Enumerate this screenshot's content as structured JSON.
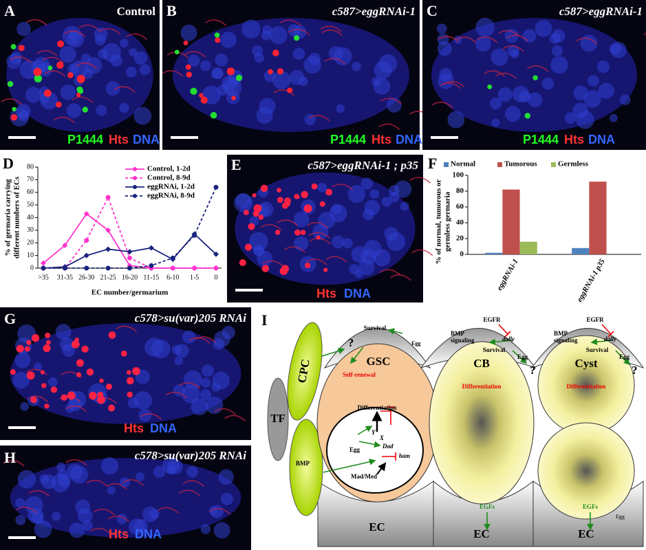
{
  "panels": {
    "A": {
      "letter": "A",
      "genotype": "Control",
      "stains": [
        "P1444",
        "Hts",
        "DNA"
      ]
    },
    "B": {
      "letter": "B",
      "genotype": "c587>eggRNAi-1",
      "stains": [
        "P1444",
        "Hts",
        "DNA"
      ]
    },
    "C": {
      "letter": "C",
      "genotype": "c587>eggRNAi-1",
      "stains": [
        "P1444",
        "Hts",
        "DNA"
      ]
    },
    "D": {
      "letter": "D"
    },
    "E": {
      "letter": "E",
      "genotype": "c587>eggRNAi-1 ; p35",
      "stains": [
        "Hts",
        "DNA"
      ]
    },
    "F": {
      "letter": "F"
    },
    "G": {
      "letter": "G",
      "genotype": "c578>su(var)205 RNAi",
      "stains": [
        "Hts",
        "DNA"
      ]
    },
    "H": {
      "letter": "H",
      "genotype": "c578>su(var)205 RNAi",
      "stains": [
        "Hts",
        "DNA"
      ]
    }
  },
  "chart_data": [
    {
      "type": "line",
      "ylabel": [
        "% of germaria carrying",
        "different numbers of ECs"
      ],
      "xlabel": "EC number/germarium",
      "categories": [
        ">35",
        "31-35",
        "26-30",
        "21-25",
        "16-20",
        "11-15",
        "6-10",
        "1-5",
        "0"
      ],
      "ylim": [
        0,
        80
      ],
      "yticks": [
        0,
        10,
        20,
        30,
        40,
        50,
        60,
        70,
        80
      ],
      "legend": "upper right",
      "series": [
        {
          "name": "Control, 1-2d",
          "color": "#ff33cc",
          "dash": false,
          "marker": "diamond",
          "values": [
            4,
            18,
            43,
            30,
            2,
            0,
            0,
            0,
            0
          ]
        },
        {
          "name": "Control, 8-9d",
          "color": "#ff33cc",
          "dash": true,
          "marker": "circle",
          "values": [
            0,
            0,
            22,
            56,
            8,
            0,
            0,
            0,
            0
          ]
        },
        {
          "name": "eggRNAi, 1-2d",
          "color": "#1a237e",
          "dash": false,
          "marker": "diamond",
          "values": [
            0,
            1,
            10,
            15,
            13,
            16,
            7,
            27,
            11
          ]
        },
        {
          "name": "eggRNAi, 8-9d",
          "color": "#1a237e",
          "dash": true,
          "marker": "circle",
          "values": [
            0,
            0,
            0,
            0,
            0,
            2,
            8,
            26,
            64
          ]
        }
      ]
    },
    {
      "type": "bar",
      "ylabel": [
        "% of normal, tumorous or",
        "germless germaria"
      ],
      "categories": [
        "eggRNAi-1",
        "eggRNAi-1 p35"
      ],
      "ylim": [
        0,
        100
      ],
      "yticks": [
        0,
        20,
        40,
        60,
        80,
        100
      ],
      "legend": "top",
      "series": [
        {
          "name": "Normal",
          "color": "#4f81bd",
          "values": [
            2,
            8
          ]
        },
        {
          "name": "Tumorous",
          "color": "#c0504d",
          "values": [
            82,
            92
          ]
        },
        {
          "name": "Germless",
          "color": "#9bbb59",
          "values": [
            16,
            0
          ]
        }
      ]
    }
  ],
  "diagram": {
    "letter": "I",
    "cpc": "CPC",
    "tf": "TF",
    "bmp": "BMP",
    "gsc": {
      "title": "GSC",
      "survival": "Survival",
      "egg_top": "Egg",
      "q": "?",
      "self_renewal": "Self-renewal",
      "differentiation": "Differentiation",
      "y": "Y",
      "x": "X",
      "egg": "Egg",
      "dad": "Dad",
      "mad_med": "Mad/Med",
      "bam": "bam",
      "ec": "EC"
    },
    "cb": {
      "title": "CB",
      "egfr": "EGFR",
      "bmp_signaling": [
        "BMP",
        "signaling"
      ],
      "dally": "dally",
      "survival": "Survival",
      "egg": "Egg",
      "q": "?",
      "differentiation": "Differentiation",
      "egfs": "EGFs",
      "ec": "EC"
    },
    "cyst": {
      "title": "Cyst",
      "egfr": "EGFR",
      "bmp_signaling": [
        "BMP",
        "signaling"
      ],
      "dally": "dally",
      "survival": "Survival",
      "egg": "Egg",
      "q": "?",
      "differentiation": "Differentiation",
      "egfs": "EGFs",
      "egg_bottom": "Egg",
      "ec": "EC"
    }
  }
}
